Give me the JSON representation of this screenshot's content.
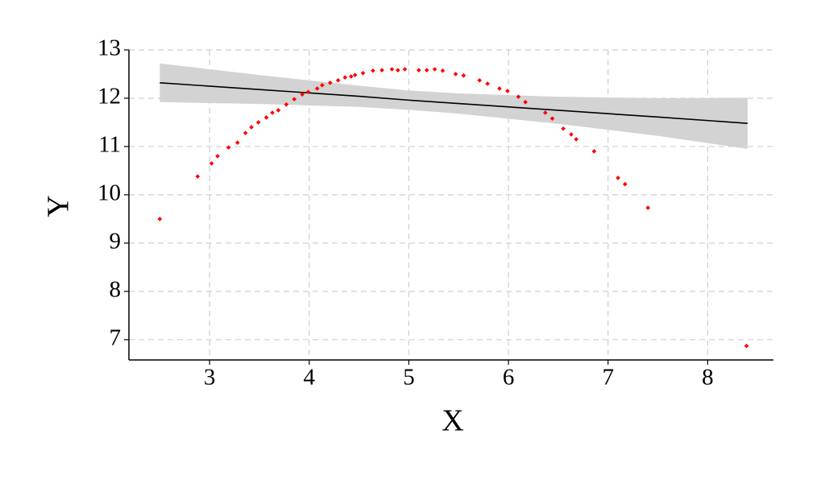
{
  "chart_data": {
    "type": "scatter",
    "x_label": "X",
    "y_label": "Y",
    "xlim": [
      2.19,
      8.66
    ],
    "ylim": [
      6.58,
      13
    ],
    "xticks": [
      3,
      4,
      5,
      6,
      7,
      8
    ],
    "yticks": [
      7,
      8,
      9,
      10,
      11,
      12,
      13
    ],
    "grid": true,
    "series": [
      {
        "color": "#ff0000",
        "x": [
          2.5,
          2.88,
          3.02,
          3.08,
          3.19,
          3.28,
          3.36,
          3.42,
          3.49,
          3.57,
          3.63,
          3.69,
          3.77,
          3.85,
          3.93,
          3.99,
          4.08,
          4.13,
          4.21,
          4.29,
          4.36,
          4.42,
          4.46,
          4.54,
          4.64,
          4.73,
          4.83,
          4.89,
          4.96,
          5.1,
          5.18,
          5.26,
          5.34,
          5.47,
          5.55,
          5.71,
          5.79,
          5.91,
          5.99,
          6.1,
          6.17,
          6.37,
          6.44,
          6.55,
          6.63,
          6.68,
          6.86,
          7.1,
          7.17,
          7.4,
          8.39
        ],
        "values": [
          9.5,
          10.38,
          10.65,
          10.8,
          10.98,
          11.08,
          11.28,
          11.4,
          11.5,
          11.6,
          11.7,
          11.75,
          11.87,
          11.98,
          12.08,
          12.13,
          12.2,
          12.27,
          12.32,
          12.37,
          12.43,
          12.45,
          12.48,
          12.52,
          12.57,
          12.58,
          12.6,
          12.58,
          12.6,
          12.58,
          12.58,
          12.6,
          12.57,
          12.5,
          12.47,
          12.37,
          12.3,
          12.2,
          12.15,
          12.03,
          11.92,
          11.7,
          11.58,
          11.37,
          11.25,
          11.15,
          10.9,
          10.35,
          10.22,
          9.73,
          6.87
        ]
      }
    ],
    "fit": {
      "color": "#000000",
      "band_color": "#d3d3d3",
      "x": [
        2.5,
        3.5,
        4.5,
        5.0,
        5.5,
        6.5,
        7.5,
        8.4
      ],
      "values": [
        12.32,
        12.18,
        12.04,
        11.96,
        11.89,
        11.75,
        11.61,
        11.48
      ],
      "lower": [
        11.92,
        11.88,
        11.82,
        11.76,
        11.68,
        11.47,
        11.22,
        10.95
      ],
      "upper": [
        12.72,
        12.48,
        12.26,
        12.16,
        12.1,
        12.03,
        12.0,
        12.01
      ]
    }
  }
}
